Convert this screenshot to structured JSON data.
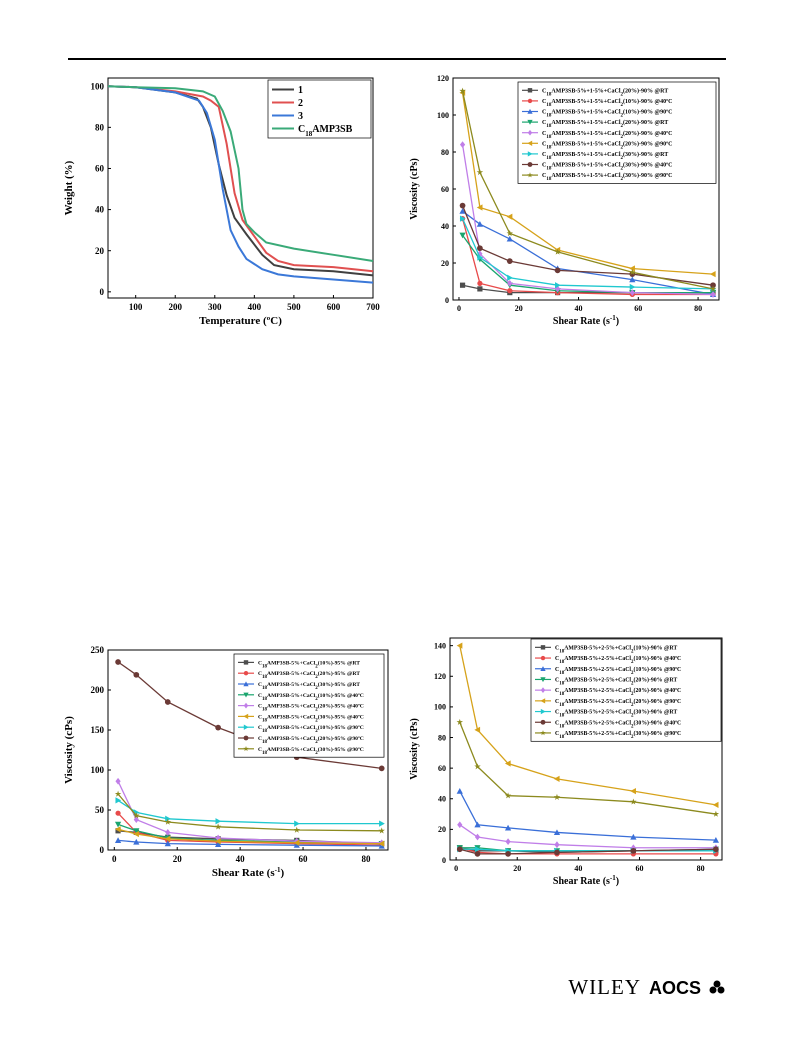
{
  "footer": {
    "publisher": "WILEY",
    "society": "AOCS",
    "society_icon": "clover-icon"
  },
  "chart_data": [
    {
      "type": "line",
      "ylabel": "Weight  (%)",
      "xlabel": "Temperature (ºC)",
      "xlim": [
        30,
        700
      ],
      "ylim": [
        -3,
        104
      ],
      "xticks": [
        100,
        200,
        300,
        400,
        500,
        600,
        700
      ],
      "yticks": [
        0,
        20,
        40,
        60,
        80,
        100
      ],
      "markers": false,
      "legend_position": "top-right",
      "series": [
        {
          "name": "1",
          "color": "#404040",
          "x": [
            30,
            100,
            200,
            255,
            270,
            290,
            310,
            330,
            350,
            380,
            420,
            450,
            500,
            600,
            700
          ],
          "y": [
            100,
            99.5,
            97,
            94,
            90,
            80,
            62,
            47,
            36,
            28,
            18,
            13,
            11,
            10,
            8
          ]
        },
        {
          "name": "2",
          "color": "#e05050",
          "x": [
            30,
            100,
            200,
            270,
            290,
            310,
            330,
            350,
            370,
            400,
            430,
            460,
            500,
            600,
            700
          ],
          "y": [
            100,
            99.5,
            97.5,
            95,
            93,
            90,
            72,
            48,
            35,
            27,
            19,
            15,
            13,
            12,
            10
          ]
        },
        {
          "name": "3",
          "color": "#3b78d8",
          "x": [
            30,
            100,
            200,
            260,
            280,
            300,
            320,
            340,
            360,
            380,
            420,
            460,
            500,
            600,
            700
          ],
          "y": [
            100,
            99.5,
            97,
            93,
            87,
            74,
            50,
            30,
            22,
            16,
            11,
            8.5,
            7.5,
            6,
            4.5
          ]
        },
        {
          "name": "C18AMP3SB",
          "color": "#3aaa78",
          "x": [
            30,
            100,
            200,
            270,
            300,
            320,
            340,
            360,
            370,
            380,
            400,
            430,
            500,
            600,
            700
          ],
          "y": [
            100,
            99.5,
            99,
            97.5,
            95,
            88,
            78,
            60,
            40,
            33,
            29,
            24,
            21,
            18,
            15
          ]
        }
      ]
    },
    {
      "type": "line",
      "ylabel": "Viscosity (cPs)",
      "xlabel": "Shear Rate (s⁻¹)",
      "xlim": [
        -2,
        87
      ],
      "ylim": [
        0,
        120
      ],
      "xticks": [
        0,
        20,
        40,
        60,
        80
      ],
      "yticks": [
        0,
        20,
        40,
        60,
        80,
        100,
        120
      ],
      "markers": true,
      "legend_position": "top-right",
      "x": [
        1.2,
        7,
        17,
        33,
        58,
        85
      ],
      "series": [
        {
          "name": "C18AMP3SB-5%+1-5%+CaCl2(20%)-90% @RT",
          "color": "#4d4d4d",
          "marker": "square",
          "values": [
            8,
            6,
            4,
            4,
            4,
            4
          ]
        },
        {
          "name": "C18AMP3SB-5%+1-5%+CaCl2(10%)-90% @40ºC",
          "color": "#e84a4a",
          "marker": "circle",
          "values": [
            44,
            9,
            5,
            4,
            3,
            3
          ]
        },
        {
          "name": "C18AMP3SB-5%+1-5%+CaCl2(10%)-90% @90ºC",
          "color": "#3a6fd8",
          "marker": "triangle-up",
          "values": [
            48,
            41,
            33,
            17,
            11,
            3
          ]
        },
        {
          "name": "C18AMP3SB-5%+1-5%+CaCl2(20%)-90% @RT",
          "color": "#1aa56e",
          "marker": "triangle-down",
          "values": [
            35,
            22,
            8,
            5,
            4,
            4
          ]
        },
        {
          "name": "C18AMP3SB-5%+1-5%+CaCl2(20%)-90% @40ºC",
          "color": "#c07ee8",
          "marker": "diamond",
          "values": [
            84,
            25,
            9,
            6,
            4,
            3
          ]
        },
        {
          "name": "C18AMP3SB-5%+1-5%+CaCl2(20%)-90% @90ºC",
          "color": "#d6a21a",
          "marker": "triangle-left",
          "values": [
            112,
            50,
            45,
            27,
            17,
            14
          ]
        },
        {
          "name": "C18AMP3SB-5%+1-5%+CaCl2(30%)-90% @RT",
          "color": "#20c8cf",
          "marker": "triangle-right",
          "values": [
            44,
            23,
            12,
            8,
            7,
            6
          ]
        },
        {
          "name": "C18AMP3SB-5%+1-5%+CaCl2(30%)-90% @40ºC",
          "color": "#6b3a36",
          "marker": "hexagon",
          "values": [
            51,
            28,
            21,
            16,
            14,
            8
          ]
        },
        {
          "name": "C18AMP3SB-5%+1-5%+CaCl2(30%)-90% @90ºC",
          "color": "#8c8a1e",
          "marker": "star",
          "values": [
            113,
            69,
            36,
            26,
            15,
            6
          ]
        }
      ]
    },
    {
      "type": "line",
      "ylabel": "Viscosity (cPs)",
      "xlabel": "Shear Rate (s⁻¹)",
      "xlim": [
        -2,
        87
      ],
      "ylim": [
        0,
        250
      ],
      "xticks": [
        0,
        20,
        40,
        60,
        80
      ],
      "yticks": [
        0,
        50,
        100,
        150,
        200,
        250
      ],
      "markers": true,
      "legend_position": "top-right",
      "x": [
        1.2,
        7,
        17,
        33,
        58,
        85
      ],
      "series": [
        {
          "name": "C18AMP3SB-5%+CaCl2(10%)-95% @RT",
          "color": "#4d4d4d",
          "marker": "square",
          "values": [
            24,
            22,
            16,
            14,
            12,
            8
          ]
        },
        {
          "name": "C18AMP3SB-5%+CaCl2(20%)-95% @RT",
          "color": "#e84a4a",
          "marker": "circle",
          "values": [
            46,
            22,
            12,
            10,
            8,
            6
          ]
        },
        {
          "name": "C18AMP3SB-5%+CaCl2(30%)-95% @RT",
          "color": "#3a6fd8",
          "marker": "triangle-up",
          "values": [
            12,
            10,
            8,
            7,
            6,
            5
          ]
        },
        {
          "name": "C18AMP3SB-5%+CaCl2(10%)-95% @40ºC",
          "color": "#1aa56e",
          "marker": "triangle-down",
          "values": [
            32,
            24,
            15,
            12,
            10,
            8
          ]
        },
        {
          "name": "C18AMP3SB-5%+CaCl2(20%)-95% @40ºC",
          "color": "#c07ee8",
          "marker": "diamond",
          "values": [
            86,
            38,
            22,
            15,
            11,
            9
          ]
        },
        {
          "name": "C18AMP3SB-5%+CaCl2(30%)-95% @40ºC",
          "color": "#d6a21a",
          "marker": "triangle-left",
          "values": [
            26,
            20,
            14,
            11,
            9,
            8
          ]
        },
        {
          "name": "C18AMP3SB-5%+CaCl2(10%)-95% @90ºC",
          "color": "#20c8cf",
          "marker": "triangle-right",
          "values": [
            62,
            47,
            39,
            36,
            33,
            33
          ]
        },
        {
          "name": "C18AMP3SB-5%+CaCl2(20%)-95% @90ºC",
          "color": "#6b3a36",
          "marker": "hexagon",
          "values": [
            235,
            219,
            185,
            153,
            116,
            102
          ]
        },
        {
          "name": "C18AMP3SB-5%+CaCl2(30%)-95% @90ºC",
          "color": "#8c8a1e",
          "marker": "star",
          "values": [
            70,
            43,
            35,
            29,
            25,
            24
          ]
        }
      ]
    },
    {
      "type": "line",
      "ylabel": "Viscosity (cPs)",
      "xlabel": "Shear Rate (s⁻¹)",
      "xlim": [
        -2,
        87
      ],
      "ylim": [
        0,
        145
      ],
      "xticks": [
        0,
        20,
        40,
        60,
        80
      ],
      "yticks": [
        0,
        20,
        40,
        60,
        80,
        100,
        120,
        140
      ],
      "markers": true,
      "legend_position": "top-right",
      "x": [
        1.2,
        7,
        17,
        33,
        58,
        85
      ],
      "series": [
        {
          "name": "C18AMP3SB-5%+2-5%+CaCl2(10%)-90% @RT",
          "color": "#4d4d4d",
          "marker": "square",
          "values": [
            8,
            6,
            6,
            5,
            6,
            6
          ]
        },
        {
          "name": "C18AMP3SB-5%+2-5%+CaCl2(10%)-90% @40ºC",
          "color": "#e84a4a",
          "marker": "circle",
          "values": [
            8,
            5,
            4,
            4,
            4,
            4
          ]
        },
        {
          "name": "C18AMP3SB-5%+2-5%+CaCl2(10%)-90% @90ºC",
          "color": "#3a6fd8",
          "marker": "triangle-up",
          "values": [
            45,
            23,
            21,
            18,
            15,
            13
          ]
        },
        {
          "name": "C18AMP3SB-5%+2-5%+CaCl2(20%)-90% @RT",
          "color": "#1aa56e",
          "marker": "triangle-down",
          "values": [
            8,
            8,
            6,
            6,
            6,
            7
          ]
        },
        {
          "name": "C18AMP3SB-5%+2-5%+CaCl2(20%)-90% @40ºC",
          "color": "#c07ee8",
          "marker": "diamond",
          "values": [
            23,
            15,
            12,
            10,
            8,
            8
          ]
        },
        {
          "name": "C18AMP3SB-5%+2-5%+CaCl2(20%)-90% @90ºC",
          "color": "#d6a21a",
          "marker": "triangle-left",
          "values": [
            140,
            85,
            63,
            53,
            45,
            36
          ]
        },
        {
          "name": "C18AMP3SB-5%+2-5%+CaCl2(30%)-90% @RT",
          "color": "#20c8cf",
          "marker": "triangle-right",
          "values": [
            7,
            7,
            6,
            6,
            6,
            6
          ]
        },
        {
          "name": "C18AMP3SB-5%+2-5%+CaCl2(30%)-90% @40ºC",
          "color": "#6b3a36",
          "marker": "hexagon",
          "values": [
            7,
            4,
            4,
            5,
            6,
            7
          ]
        },
        {
          "name": "C18AMP3SB-5%+2-5%+CaCl2(30%)-90% @90ºC",
          "color": "#8c8a1e",
          "marker": "star",
          "values": [
            90,
            61,
            42,
            41,
            38,
            30
          ]
        }
      ]
    }
  ]
}
